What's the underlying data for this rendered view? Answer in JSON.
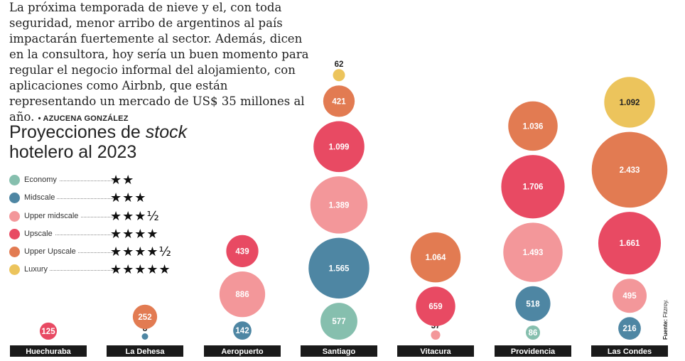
{
  "article": {
    "text": "La próxima temporada de nieve y el, con toda seguridad, menor arribo de argentinos al país impactarán fuertemente al sector. Además, dicen en la consultora, hoy sería un buen momento para regular el negocio informal del alojamiento, con aplicaciones como Airbnb, que están representando un mercado de US$ 35 millones al año.",
    "author": "• AZUCENA GONZÁLEZ"
  },
  "title_line1": "Proyecciones de ",
  "title_italic": "stock",
  "title_line2": "hotelero al 2023",
  "source_label": "Fuente:",
  "source_value": "Fitzroy.",
  "legend": [
    {
      "label": "Economy",
      "stars": "★★",
      "color": "#86bfae"
    },
    {
      "label": "Midscale",
      "stars": "★★★",
      "color": "#4e86a3"
    },
    {
      "label": "Upper midscale",
      "stars": "★★★½",
      "color": "#f3979a"
    },
    {
      "label": "Upscale",
      "stars": "★★★★",
      "color": "#e84a63"
    },
    {
      "label": "Upper Upscale",
      "stars": "★★★★½",
      "color": "#e27b52"
    },
    {
      "label": "Luxury",
      "stars": "★★★★★",
      "color": "#ecc45c"
    }
  ],
  "chart_data": {
    "type": "bubble",
    "title": "Proyecciones de stock hotelero al 2023",
    "series_names": [
      "Economy",
      "Midscale",
      "Upper midscale",
      "Upscale",
      "Upper Upscale",
      "Luxury"
    ],
    "categories": [
      "Huechuraba",
      "La Dehesa",
      "Aeropuerto",
      "Santiago",
      "Vitacura",
      "Providencia",
      "Las Condes"
    ],
    "values": {
      "Huechuraba": [
        {
          "series": "Upscale",
          "value": 125,
          "label": "125"
        }
      ],
      "La Dehesa": [
        {
          "series": "Midscale",
          "value": 8,
          "label": "8"
        },
        {
          "series": "Upper Upscale",
          "value": 252,
          "label": "252"
        }
      ],
      "Aeropuerto": [
        {
          "series": "Midscale",
          "value": 142,
          "label": "142"
        },
        {
          "series": "Upper midscale",
          "value": 886,
          "label": "886"
        },
        {
          "series": "Upscale",
          "value": 439,
          "label": "439"
        }
      ],
      "Santiago": [
        {
          "series": "Economy",
          "value": 577,
          "label": "577"
        },
        {
          "series": "Midscale",
          "value": 1565,
          "label": "1.565"
        },
        {
          "series": "Upper midscale",
          "value": 1389,
          "label": "1.389"
        },
        {
          "series": "Upscale",
          "value": 1099,
          "label": "1.099"
        },
        {
          "series": "Upper Upscale",
          "value": 421,
          "label": "421"
        },
        {
          "series": "Luxury",
          "value": 62,
          "label": "62"
        }
      ],
      "Vitacura": [
        {
          "series": "Upper midscale",
          "value": 37,
          "label": "37"
        },
        {
          "series": "Upscale",
          "value": 659,
          "label": "659"
        },
        {
          "series": "Upper Upscale",
          "value": 1064,
          "label": "1.064"
        }
      ],
      "Providencia": [
        {
          "series": "Economy",
          "value": 86,
          "label": "86"
        },
        {
          "series": "Midscale",
          "value": 518,
          "label": "518"
        },
        {
          "series": "Upper midscale",
          "value": 1493,
          "label": "1.493"
        },
        {
          "series": "Upscale",
          "value": 1706,
          "label": "1.706"
        },
        {
          "series": "Upper Upscale",
          "value": 1036,
          "label": "1.036"
        }
      ],
      "Las Condes": [
        {
          "series": "Midscale",
          "value": 216,
          "label": "216"
        },
        {
          "series": "Upper midscale",
          "value": 495,
          "label": "495"
        },
        {
          "series": "Upscale",
          "value": 1661,
          "label": "1.661"
        },
        {
          "series": "Upper Upscale",
          "value": 2433,
          "label": "2.433"
        },
        {
          "series": "Luxury",
          "value": 1092,
          "label": "1.092"
        }
      ]
    },
    "colors": {
      "Economy": "#86bfae",
      "Midscale": "#4e86a3",
      "Upper midscale": "#f3979a",
      "Upscale": "#e84a63",
      "Upper Upscale": "#e27b52",
      "Luxury": "#ecc45c"
    },
    "label_bar_color": "#1a1a1a"
  }
}
